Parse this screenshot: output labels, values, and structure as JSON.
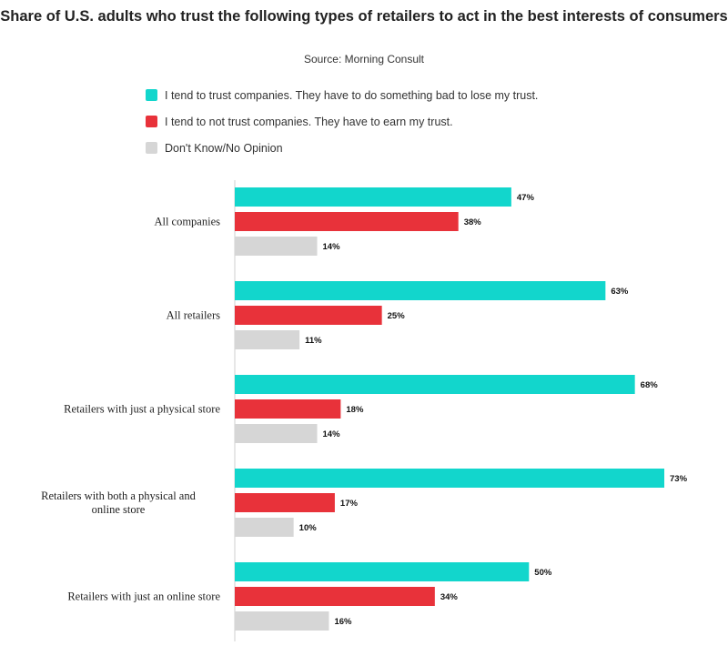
{
  "chart_data": {
    "type": "bar",
    "orientation": "horizontal",
    "title": "Share of U.S. adults who trust the following types of retailers to act in the best interests of consumers",
    "subtitle": "Source: Morning Consult",
    "categories": [
      "All companies",
      "All retailers",
      "Retailers with just a physical store",
      "Retailers with both a physical and online store",
      "Retailers with just an online store"
    ],
    "series": [
      {
        "name": "I tend to trust companies. They have to do something bad to lose my trust.",
        "color": "#12d6cc",
        "values": [
          47,
          63,
          68,
          73,
          50
        ]
      },
      {
        "name": "I tend to not trust companies. They have to earn my trust.",
        "color": "#e8323a",
        "values": [
          38,
          25,
          18,
          17,
          34
        ]
      },
      {
        "name": "Don't Know/No Opinion",
        "color": "#d6d6d6",
        "values": [
          14,
          11,
          14,
          10,
          16
        ]
      }
    ],
    "value_suffix": "%",
    "xlim": [
      0,
      75
    ],
    "grid": false,
    "legend_position": "top"
  }
}
